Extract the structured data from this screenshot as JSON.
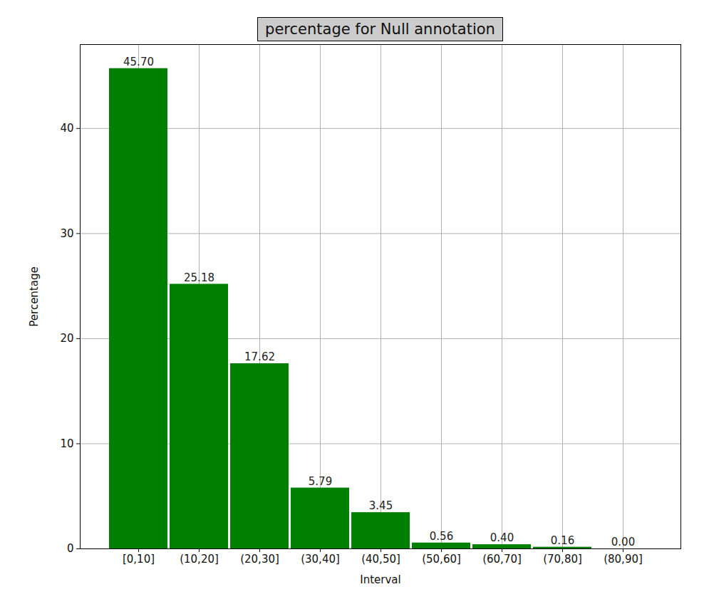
{
  "chart_data": {
    "type": "bar",
    "title": "percentage for Null annotation",
    "x_label": "Interval",
    "y_label": "Percentage",
    "categories": [
      "[0,10]",
      "(10,20]",
      "(20,30]",
      "(30,40]",
      "(40,50]",
      "(50,60]",
      "(60,70]",
      "(70,80]",
      "(80,90]"
    ],
    "values": [
      45.7,
      25.18,
      17.62,
      5.79,
      3.45,
      0.56,
      0.4,
      0.16,
      0.0
    ],
    "value_labels": [
      "45.70",
      "25.18",
      "17.62",
      "5.79",
      "3.45",
      "0.56",
      "0.40",
      "0.16",
      "0.00"
    ],
    "color": "#008000",
    "ylim": [
      0,
      47.985
    ],
    "yticks": [
      0,
      10,
      20,
      30,
      40
    ],
    "grid": true,
    "data_labels": true
  }
}
